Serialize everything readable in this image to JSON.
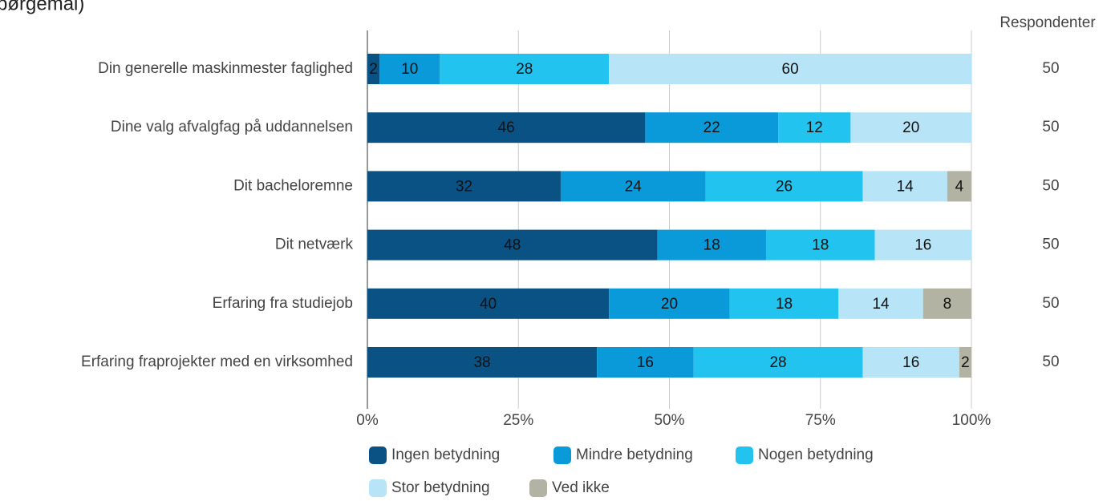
{
  "chart_data": {
    "type": "stacked_bar_horizontal",
    "title": "spørgemål)",
    "categories": [
      "Din generelle maskinmester faglighed",
      "Dine valg afvalgfag på uddannelsen",
      "Dit bacheloremne",
      "Dit netværk",
      "Erfaring fra studiejob",
      "Erfaring fraprojekter med en virksomhed"
    ],
    "series": [
      {
        "name": "Ingen betydning",
        "color": "#0b5284",
        "values": [
          2,
          46,
          32,
          48,
          40,
          38
        ]
      },
      {
        "name": "Mindre betydning",
        "color": "#0a9ad9",
        "values": [
          10,
          22,
          24,
          18,
          20,
          16
        ]
      },
      {
        "name": "Nogen betydning",
        "color": "#22c3ef",
        "values": [
          28,
          12,
          26,
          18,
          18,
          28
        ]
      },
      {
        "name": "Stor betydning",
        "color": "#b8e4f7",
        "values": [
          60,
          20,
          14,
          16,
          14,
          16
        ]
      },
      {
        "name": "Ved ikke",
        "color": "#b3b3a3",
        "values": [
          null,
          null,
          4,
          null,
          8,
          2
        ]
      }
    ],
    "xlim": [
      0,
      100
    ],
    "xticks": [
      {
        "value": 0,
        "label": "0%"
      },
      {
        "value": 25,
        "label": "25%"
      },
      {
        "value": 50,
        "label": "50%"
      },
      {
        "value": 75,
        "label": "75%"
      },
      {
        "value": 100,
        "label": "100%"
      }
    ],
    "grid": true,
    "respondents_label": "Respondenter",
    "respondents": [
      50,
      50,
      50,
      50,
      50,
      50
    ]
  }
}
